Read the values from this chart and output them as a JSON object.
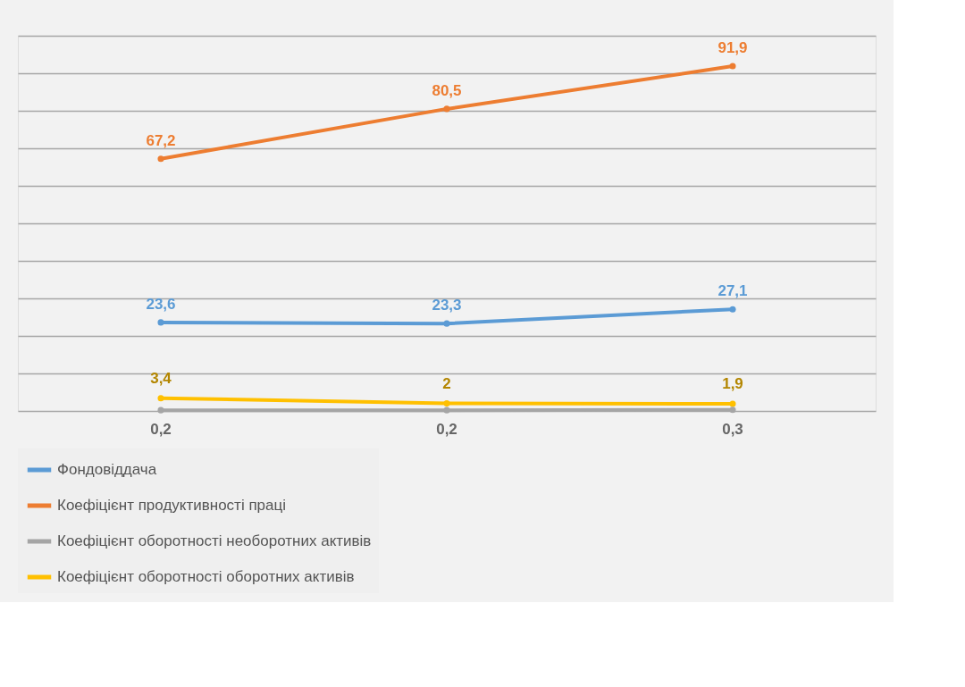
{
  "chart_data": {
    "type": "line",
    "categories": [
      null,
      null,
      null
    ],
    "ylim": [
      0,
      100
    ],
    "yticks": [
      {
        "value": 0,
        "label": null
      },
      {
        "value": 10,
        "label": null
      },
      {
        "value": 20,
        "label": null
      },
      {
        "value": 30,
        "label": null
      },
      {
        "value": 40,
        "label": null
      },
      {
        "value": 50,
        "label": null
      },
      {
        "value": 60,
        "label": null
      },
      {
        "value": 70,
        "label": null
      },
      {
        "value": 80,
        "label": null
      },
      {
        "value": 90,
        "label": null
      },
      {
        "value": 100,
        "label": null
      }
    ],
    "tick_labels": false,
    "grid": "y",
    "legend": "bottom",
    "marker": "circle",
    "line_style": "solid",
    "series": [
      {
        "name": "Фондовіддача",
        "color": "#5b9bd5",
        "values": [
          23.6,
          23.3,
          27.1
        ],
        "value_labels": [
          "23,6",
          "23,3",
          "27,1"
        ]
      },
      {
        "name": "Коефіцієнт продуктивності праці",
        "color": "#ed7d31",
        "values": [
          67.2,
          80.5,
          91.9
        ],
        "value_labels": [
          "67,2",
          "80,5",
          "91,9"
        ]
      },
      {
        "name": "Коефіцієнт оборотності необоротних активів",
        "color": "#a5a5a5",
        "values": [
          0.2,
          0.2,
          0.3
        ],
        "value_labels": [
          "0,2",
          "0,2",
          "0,3"
        ]
      },
      {
        "name": "Коефіцієнт оборотності оборотних активів",
        "color": "#ffc000",
        "values": [
          3.4,
          2,
          1.9
        ],
        "value_labels": [
          "3,4",
          "2",
          "1,9"
        ]
      }
    ]
  }
}
